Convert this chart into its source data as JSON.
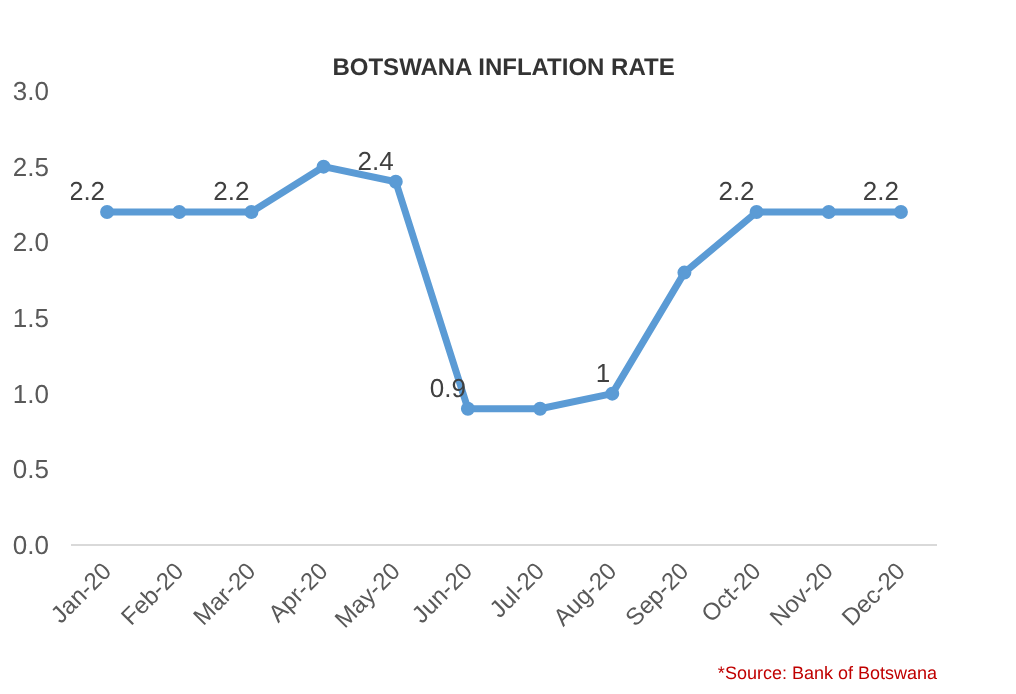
{
  "chart_data": {
    "type": "line",
    "title": "BOTSWANA INFLATION RATE",
    "categories": [
      "Jan-20",
      "Feb-20",
      "Mar-20",
      "Apr-20",
      "May-20",
      "Jun-20",
      "Jul-20",
      "Aug-20",
      "Sep-20",
      "Oct-20",
      "Nov-20",
      "Dec-20"
    ],
    "series": [
      {
        "color": "#5b9bd5",
        "values": [
          2.2,
          2.2,
          2.2,
          2.5,
          2.4,
          0.9,
          0.9,
          1.0,
          1.8,
          2.2,
          2.2,
          2.2
        ],
        "value_labels": [
          "2.2",
          null,
          "2.2",
          null,
          "2.4",
          "0.9",
          null,
          "1",
          null,
          "2.2",
          null,
          "2.2"
        ]
      }
    ],
    "ylim": [
      0,
      3
    ],
    "yticks": [
      {
        "value": 0,
        "label": "0.0"
      },
      {
        "value": 0.5,
        "label": "0.5"
      },
      {
        "value": 1,
        "label": "1.0"
      },
      {
        "value": 1.5,
        "label": "1.5"
      },
      {
        "value": 2,
        "label": "2.0"
      },
      {
        "value": 2.5,
        "label": "2.5"
      },
      {
        "value": 3,
        "label": "3.0"
      }
    ],
    "grid": false,
    "marker": "circle",
    "line_style": "solid",
    "annotations": [
      "*Source: Bank of Botswana"
    ]
  }
}
